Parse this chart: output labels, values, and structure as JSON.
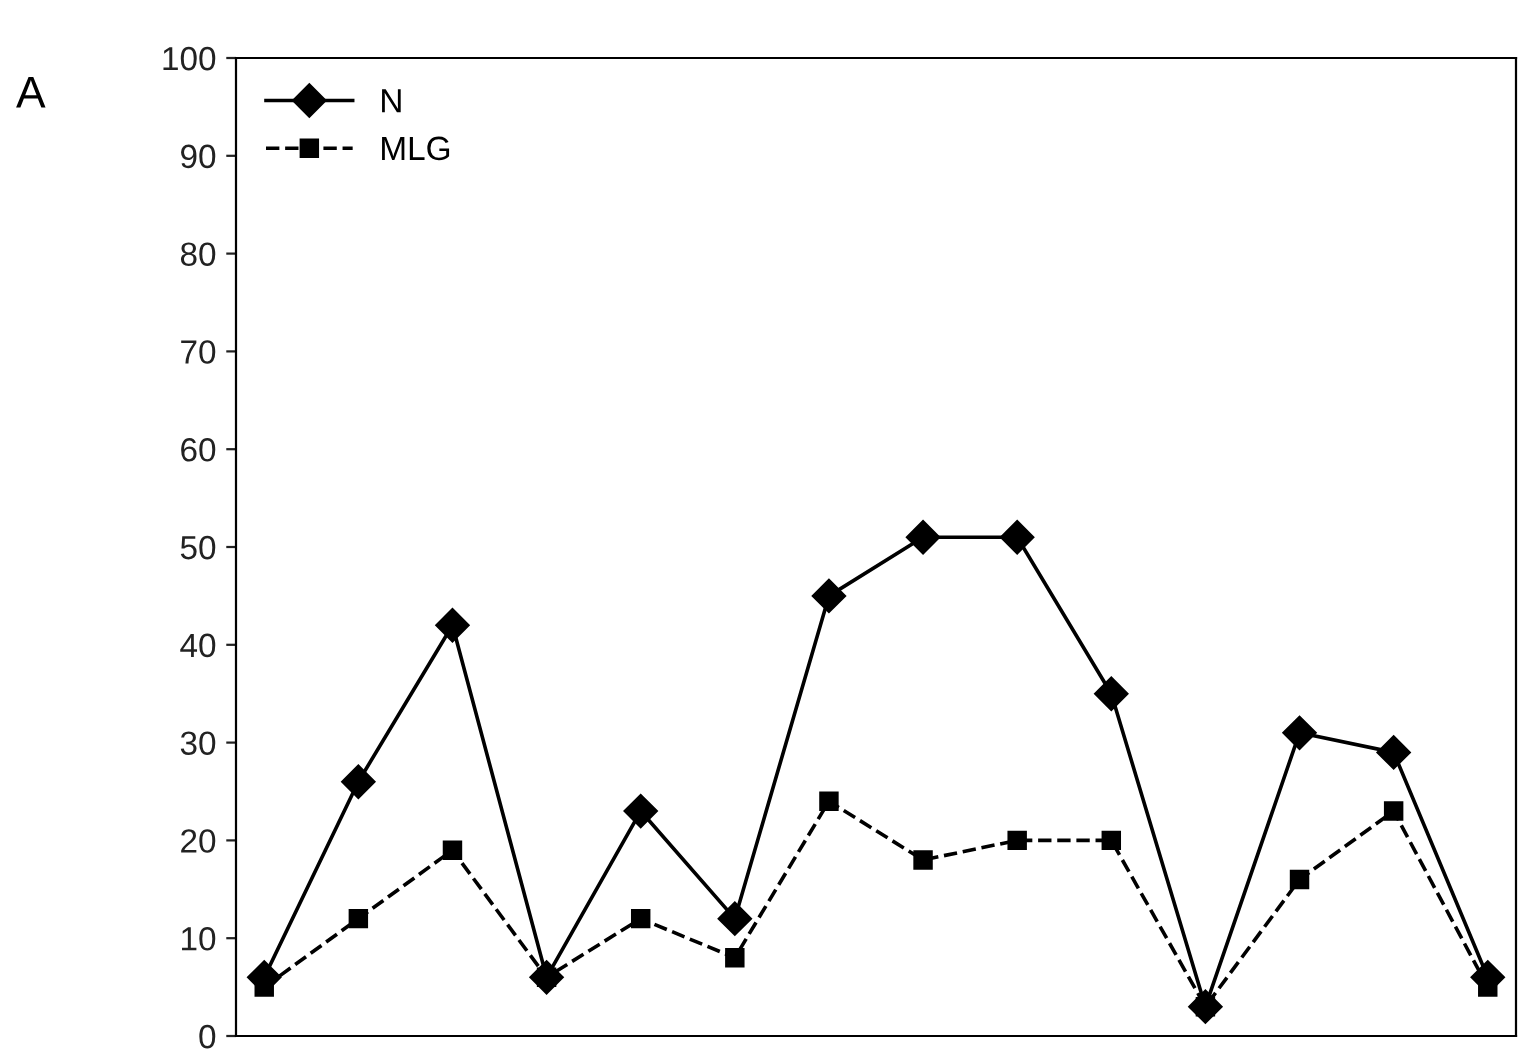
{
  "chart_data": {
    "type": "line",
    "annotations": [
      "A"
    ],
    "categories": [
      null,
      null,
      null,
      null,
      null,
      null,
      null,
      null,
      null,
      null,
      null,
      null,
      null,
      null
    ],
    "series": [
      {
        "name": "N",
        "color": "#000000",
        "marker": "diamond",
        "line_style": "solid",
        "values": [
          6,
          26,
          42,
          6,
          23,
          12,
          45,
          51,
          51,
          35,
          3,
          31,
          29,
          6
        ]
      },
      {
        "name": "MLG",
        "color": "#000000",
        "marker": "square",
        "line_style": "dashed",
        "values": [
          5,
          12,
          19,
          6,
          12,
          8,
          24,
          18,
          20,
          20,
          3,
          16,
          23,
          5
        ]
      }
    ],
    "ylim": [
      0,
      100
    ],
    "yticks": [
      0,
      10,
      20,
      30,
      40,
      50,
      60,
      70,
      80,
      90,
      100
    ],
    "grid": false,
    "legend": "top left"
  }
}
